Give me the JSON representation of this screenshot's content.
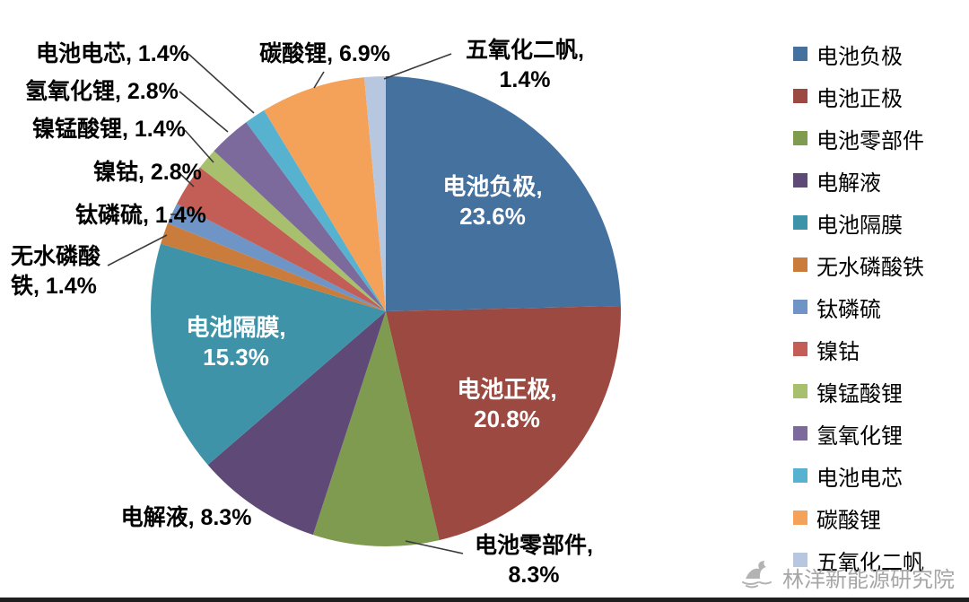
{
  "chart_data": {
    "type": "pie",
    "title": "",
    "legend_position": "right",
    "start_angle_deg": -90,
    "direction": "clockwise",
    "slices": [
      {
        "label": "电池负极",
        "value": 23.6,
        "color": "#45719F",
        "display": [
          "电池负极,",
          "23.6%"
        ],
        "label_inside": true
      },
      {
        "label": "电池正极",
        "value": 20.8,
        "color": "#9C4A41",
        "display": [
          "电池正极,",
          "20.8%"
        ],
        "label_inside": true
      },
      {
        "label": "电池零部件",
        "value": 8.3,
        "color": "#7E9B50",
        "display": [
          "电池零部件,",
          "8.3%"
        ],
        "label_inside": false
      },
      {
        "label": "电解液",
        "value": 8.3,
        "color": "#5F4A77",
        "display": [
          "电解液, 8.3%"
        ],
        "label_inside": false
      },
      {
        "label": "电池隔膜",
        "value": 15.3,
        "color": "#3F93A8",
        "display": [
          "电池隔膜,",
          "15.3%"
        ],
        "label_inside": true
      },
      {
        "label": "无水磷酸铁",
        "value": 1.4,
        "color": "#C97C3B",
        "display": [
          "无水磷酸",
          "铁, 1.4%"
        ],
        "label_inside": false
      },
      {
        "label": "钛磷硫",
        "value": 1.4,
        "color": "#6F94C6",
        "display": [
          "钛磷硫, 1.4%"
        ],
        "label_inside": false
      },
      {
        "label": "镍钴",
        "value": 2.8,
        "color": "#C25E55",
        "display": [
          "镍钴, 2.8%"
        ],
        "label_inside": false
      },
      {
        "label": "镍锰酸锂",
        "value": 1.4,
        "color": "#A8C06E",
        "display": [
          "镍锰酸锂, 1.4%"
        ],
        "label_inside": false
      },
      {
        "label": "氢氧化锂",
        "value": 2.8,
        "color": "#7C6A9C",
        "display": [
          "氢氧化锂, 2.8%"
        ],
        "label_inside": false
      },
      {
        "label": "电池电芯",
        "value": 1.4,
        "color": "#57B2D0",
        "display": [
          "电池电芯, 1.4%"
        ],
        "label_inside": false
      },
      {
        "label": "碳酸锂",
        "value": 6.9,
        "color": "#F4A259",
        "display": [
          "碳酸锂, 6.9%"
        ],
        "label_inside": false
      },
      {
        "label": "五氧化二帆",
        "value": 1.4,
        "color": "#B8C7E0",
        "display": [
          "五氧化二帆,",
          "1.4%"
        ],
        "label_inside": false
      }
    ]
  },
  "watermark": {
    "text": "林洋新能源研究院"
  }
}
